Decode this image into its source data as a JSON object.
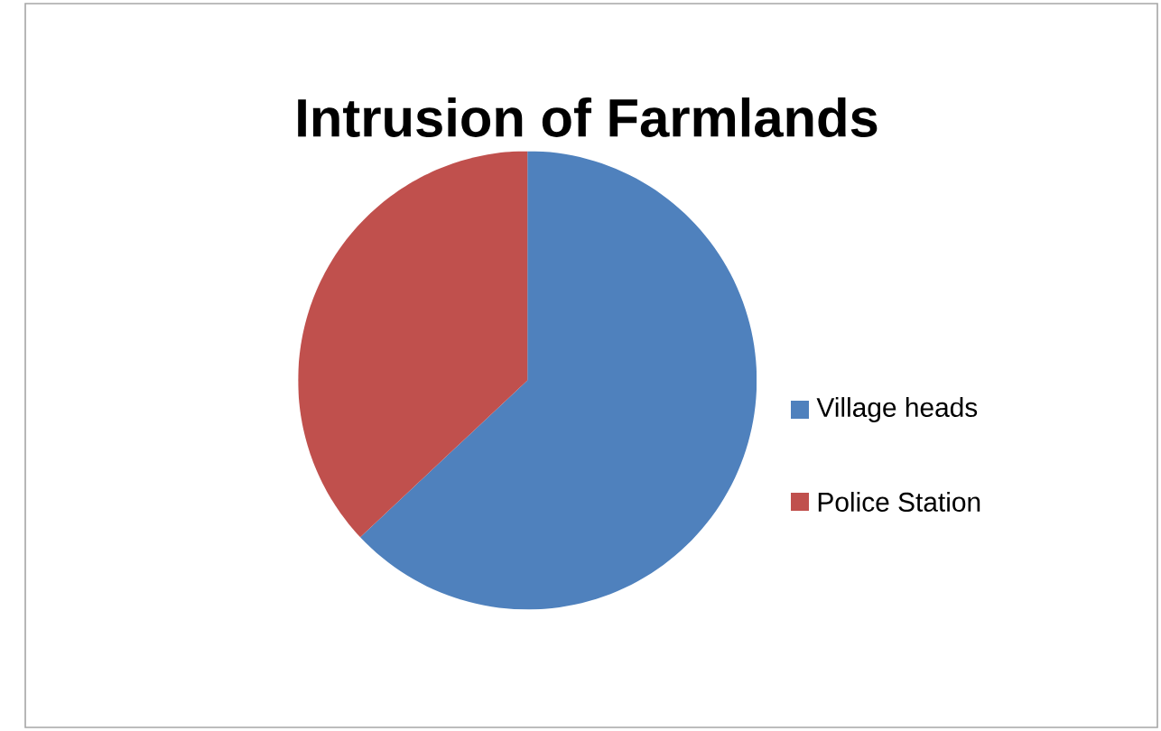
{
  "chart_data": {
    "type": "pie",
    "title": "Intrusion of Farmlands",
    "categories": [
      "Village heads",
      "Police Station"
    ],
    "values": [
      63,
      37
    ],
    "colors": [
      "#4f81bd",
      "#c0504d"
    ],
    "legend": "right"
  }
}
